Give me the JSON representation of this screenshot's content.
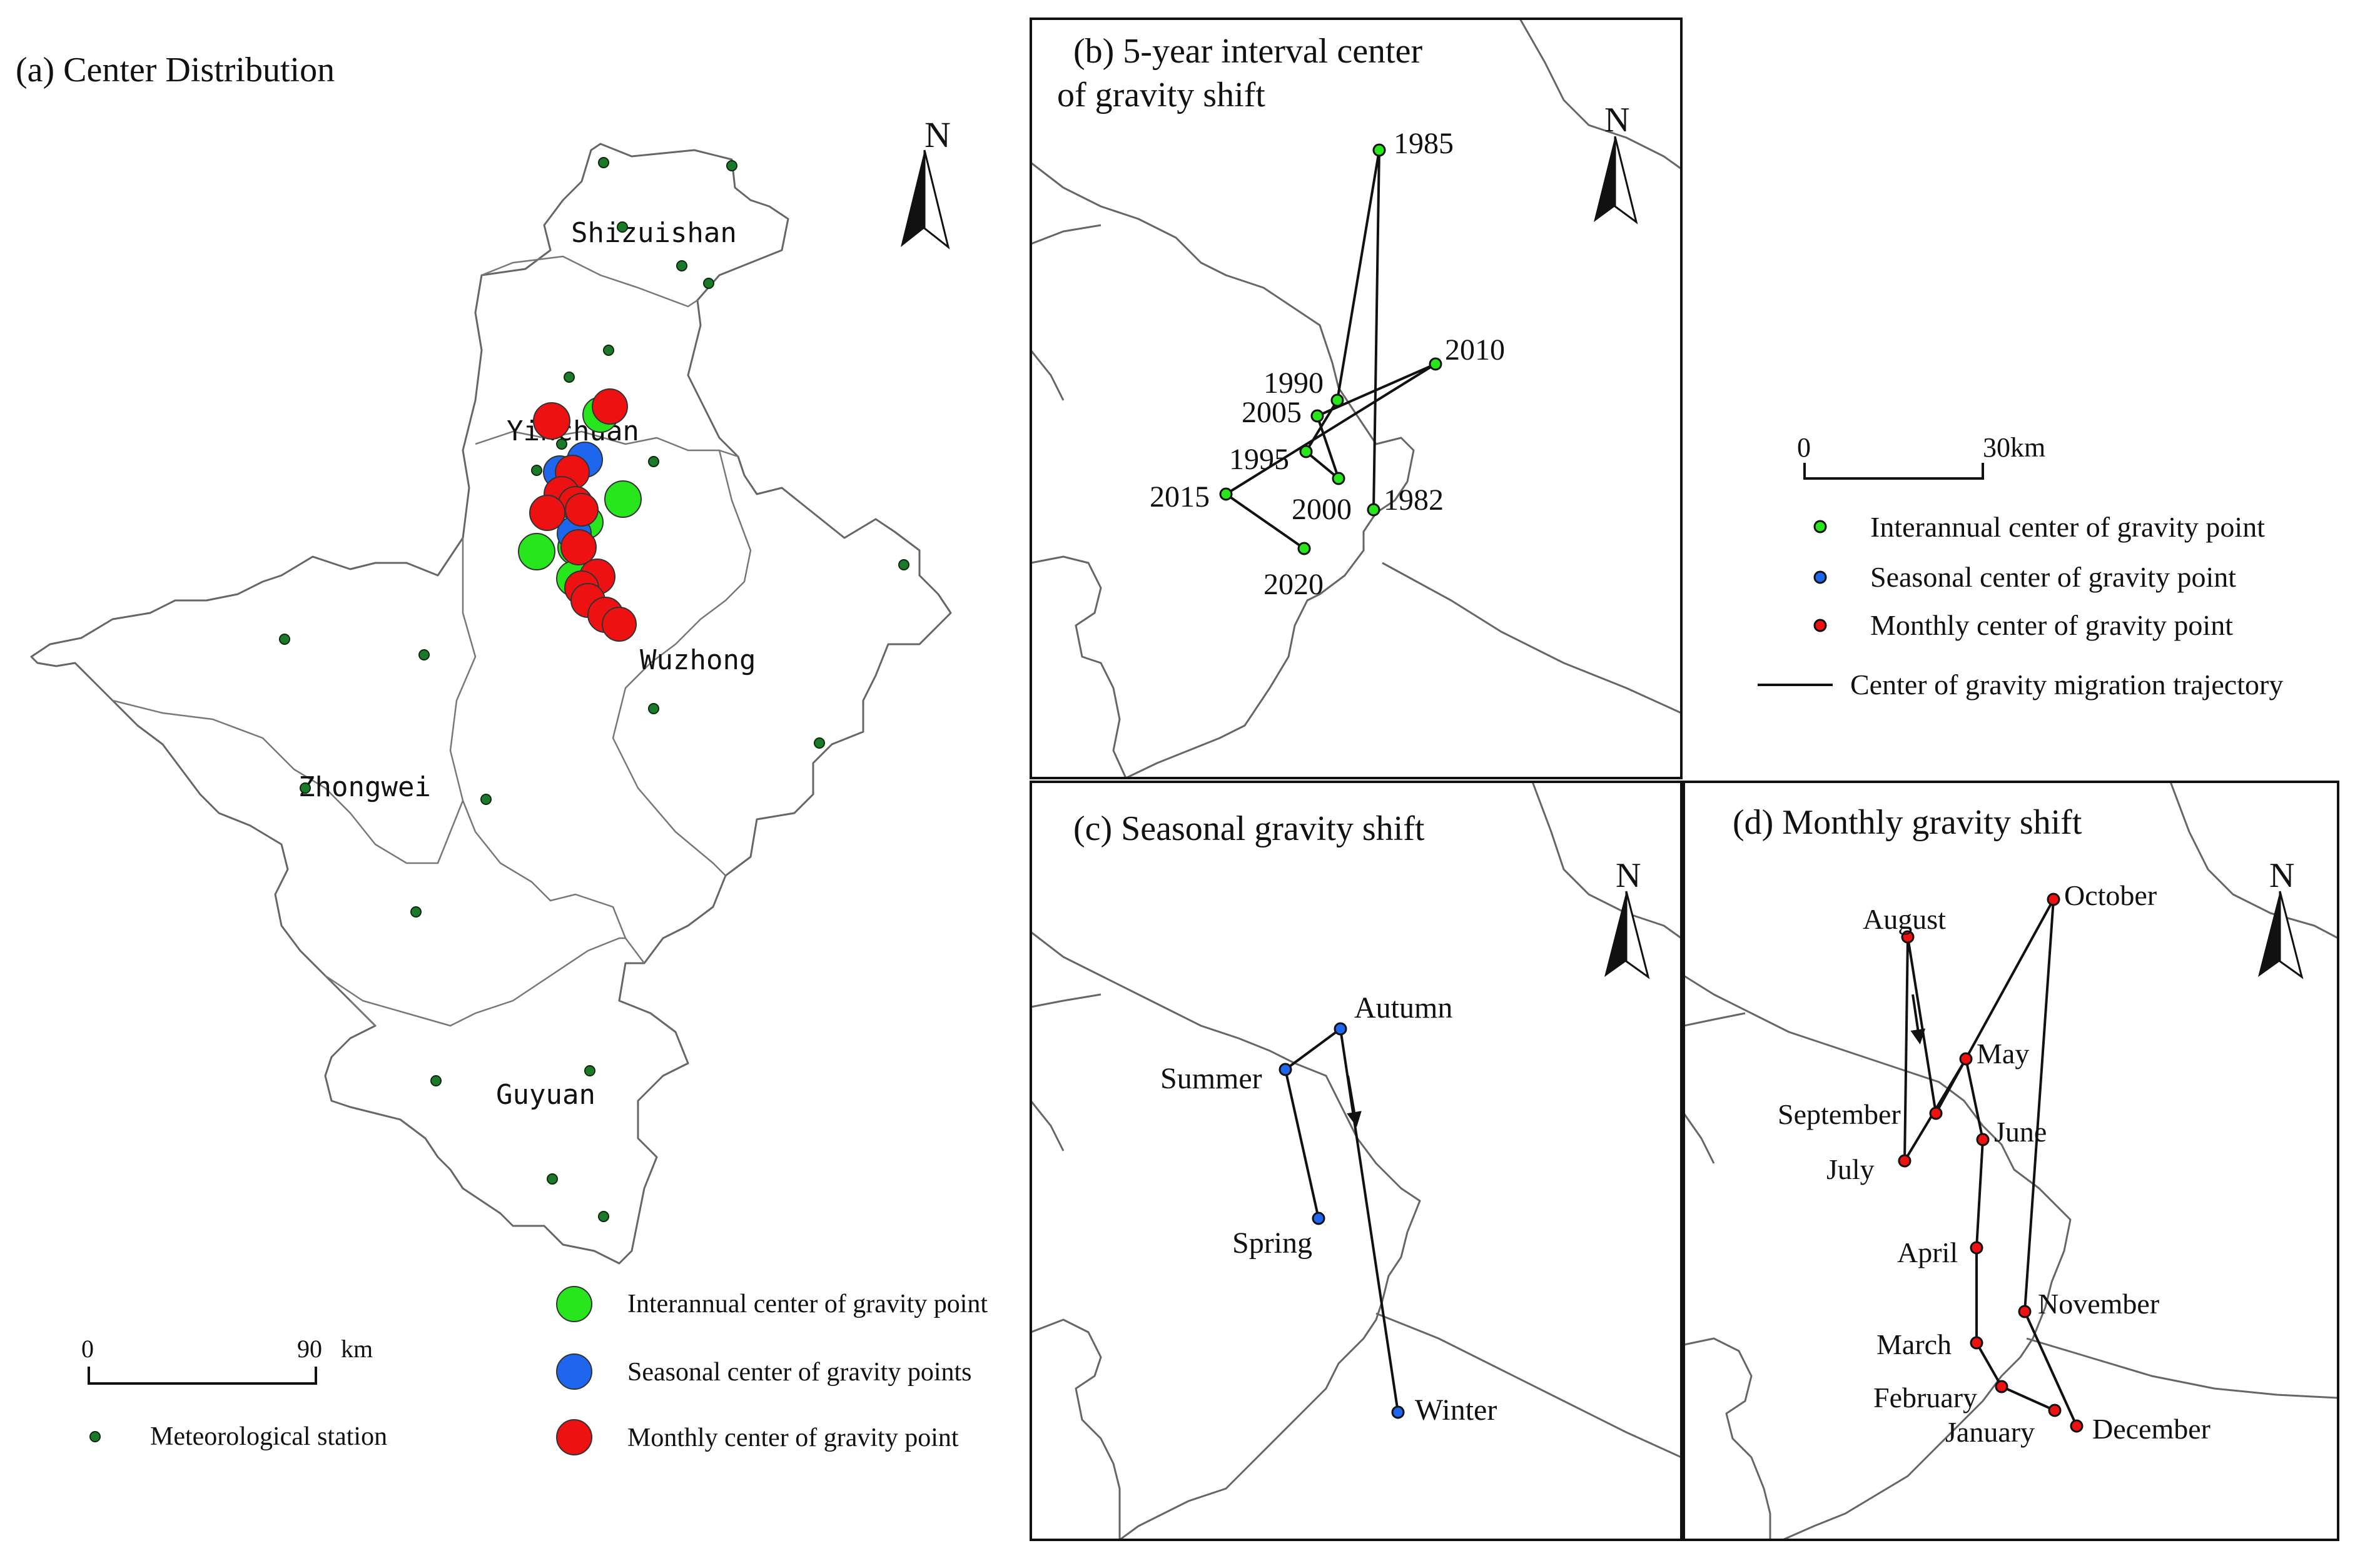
{
  "colors": {
    "interannual": "#27e61b",
    "seasonal": "#1e66ee",
    "monthly": "#ee1111",
    "station": "#1b7a2a",
    "boundary": "#666666",
    "trajectory": "#111111"
  },
  "panel_a": {
    "title": "(a) Center Distribution",
    "north_label": "N",
    "regions": [
      "Shizuishan",
      "Yinchuan",
      "Wuzhong",
      "Zhongwei",
      "Guyuan"
    ],
    "scale": {
      "start": "0",
      "end": "90",
      "unit": "km"
    },
    "legend": {
      "interannual": "Interannual center of gravity point",
      "seasonal": "Seasonal center of gravity points",
      "monthly": "Monthly center of gravity point",
      "station": "Meteorological station"
    }
  },
  "panel_b": {
    "title_line1": "(b) 5-year interval center",
    "title_line2": "of gravity shift",
    "north_label": "N",
    "points": [
      "1982",
      "1985",
      "1990",
      "1995",
      "2000",
      "2005",
      "2010",
      "2015",
      "2020"
    ],
    "scale": {
      "start": "0",
      "end": "30km"
    },
    "legend": {
      "interannual": "Interannual center of gravity point",
      "seasonal": "Seasonal center of gravity point",
      "monthly": "Monthly center of gravity point",
      "trajectory": "Center of gravity migration trajectory"
    }
  },
  "panel_c": {
    "title": "(c) Seasonal gravity shift",
    "north_label": "N",
    "points": [
      "Spring",
      "Summer",
      "Autumn",
      "Winter"
    ]
  },
  "panel_d": {
    "title": "(d) Monthly gravity shift",
    "north_label": "N",
    "points": [
      "January",
      "February",
      "March",
      "April",
      "May",
      "June",
      "July",
      "August",
      "September",
      "October",
      "November",
      "December"
    ]
  }
}
